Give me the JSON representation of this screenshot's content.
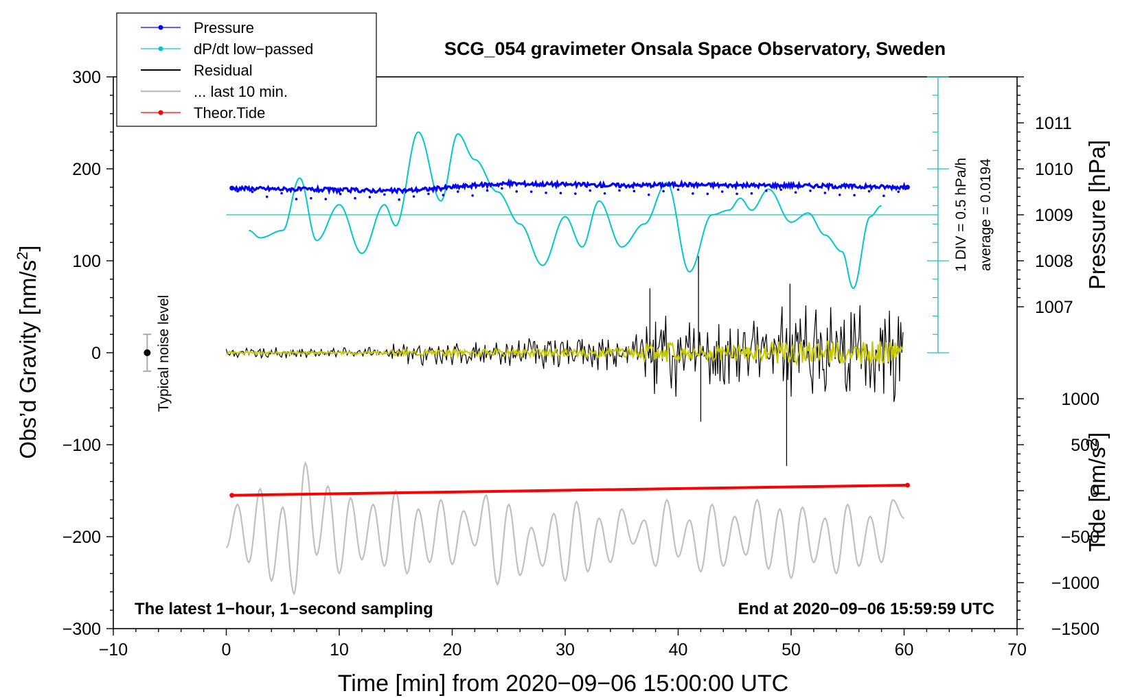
{
  "chart_data": {
    "type": "line",
    "title": "SCG_054 gravimeter Onsala Space Observatory, Sweden",
    "xlabel": "Time [min] from 2020−09−06 15:00:00 UTC",
    "ylabel_left_main": "Obs’d Gravity [nm/s",
    "ylabel_left_sup": "2",
    "ylabel_left_end": "]",
    "ylabel_right_pressure": "Pressure [hPa]",
    "ylabel_right_tide_main": "Tide [nm/s",
    "ylabel_right_tide_sup": "2",
    "ylabel_right_tide_end": "]",
    "xlim": [
      -10,
      70
    ],
    "ylim": [
      -300,
      300
    ],
    "x_ticks": [
      -10,
      0,
      10,
      20,
      30,
      40,
      50,
      60,
      70
    ],
    "x_tick_labels": [
      "−10",
      "0",
      "10",
      "20",
      "30",
      "40",
      "50",
      "60",
      "70"
    ],
    "y_ticks": [
      300,
      200,
      100,
      0,
      -100,
      -200,
      -300
    ],
    "y_tick_labels": [
      "300",
      "200",
      "100",
      "0",
      "−100",
      "−200",
      "−300"
    ],
    "pressure_axis": {
      "ticks": [
        1011,
        1010,
        1009,
        1008,
        1007
      ],
      "tick_labels": [
        "1011",
        "1010",
        "1009",
        "1008",
        "1007"
      ],
      "gravity_at": [
        250,
        200,
        150,
        100,
        50
      ]
    },
    "tide_axis": {
      "ticks": [
        1000,
        500,
        0,
        -500,
        -1000,
        -1500
      ],
      "tick_labels": [
        "1000",
        "500",
        "0",
        "−500",
        "−1000",
        "−1500"
      ],
      "gravity_at": [
        -50,
        -100,
        -150,
        -200,
        -250,
        -300
      ]
    },
    "dpdt_scale": {
      "label_div": "1 DIV = 0.5 hPa/h",
      "label_avg": "average = 0.0194",
      "x": 63,
      "gravity_top": 300,
      "gravity_bottom": 0,
      "minor_step": 20,
      "major_step": 100,
      "baseline": 150
    },
    "noise_level": {
      "label": "Typical noise level",
      "x": -7,
      "value": 0,
      "range": [
        -20,
        20
      ]
    },
    "series": [
      {
        "name": "Pressure",
        "color": "#0000ff",
        "style": "line-marker",
        "x": [
          0.5,
          5,
          10,
          15,
          18,
          20,
          22,
          25,
          30,
          35,
          40,
          45,
          50,
          55,
          60.3
        ],
        "values": [
          179,
          178,
          177,
          176,
          178,
          180,
          182,
          184,
          183,
          182,
          183,
          182,
          182,
          181,
          180
        ]
      },
      {
        "name": "dP/dt low−passed",
        "color": "#00c8c8",
        "style": "line-marker",
        "x": [
          2,
          3,
          5,
          6.5,
          8,
          10,
          12,
          14,
          15,
          17,
          19,
          20.5,
          22,
          24,
          26,
          28,
          30,
          31.5,
          33,
          35,
          37,
          39,
          41,
          43,
          44.5,
          45.5,
          46.5,
          48,
          50,
          51.5,
          53,
          54.5,
          55.5,
          57,
          58
        ],
        "values": [
          133,
          125,
          133,
          190,
          122,
          161,
          108,
          161,
          138,
          240,
          165,
          238,
          210,
          175,
          140,
          95,
          148,
          115,
          165,
          115,
          140,
          185,
          88,
          150,
          155,
          168,
          155,
          178,
          142,
          152,
          128,
          110,
          70,
          148,
          160
        ]
      },
      {
        "name": "Residual",
        "color": "#000000",
        "style": "line",
        "x": [
          0,
          14,
          15,
          20,
          25,
          30,
          34,
          37,
          38,
          40,
          42,
          44,
          47,
          50,
          52,
          55,
          58,
          60
        ],
        "values": [
          0,
          0,
          0,
          0,
          0,
          0,
          0,
          0,
          0,
          0,
          0,
          0,
          0,
          0,
          0,
          0,
          0,
          0
        ]
      },
      {
        "name": "... last 10 min.",
        "color": "#c0c0c0",
        "style": "line",
        "x": [
          0,
          1,
          2,
          3,
          4,
          5,
          6,
          7,
          8,
          9,
          10,
          11,
          12,
          13,
          14,
          15,
          16,
          17,
          18,
          19,
          20,
          21,
          22,
          23,
          24,
          25,
          26,
          27,
          28,
          29,
          30,
          31,
          32,
          33,
          34,
          35,
          36,
          37,
          38,
          39,
          40,
          41,
          42,
          43,
          44,
          45,
          46,
          47,
          48,
          49,
          50,
          51,
          52,
          53,
          54,
          55,
          56,
          57,
          58,
          59,
          60
        ],
        "values": [
          -212,
          -165,
          -228,
          -148,
          -248,
          -168,
          -262,
          -120,
          -220,
          -145,
          -240,
          -158,
          -225,
          -165,
          -232,
          -150,
          -240,
          -170,
          -228,
          -160,
          -230,
          -172,
          -210,
          -155,
          -252,
          -165,
          -242,
          -190,
          -232,
          -175,
          -248,
          -162,
          -238,
          -180,
          -228,
          -170,
          -208,
          -182,
          -232,
          -160,
          -222,
          -182,
          -238,
          -165,
          -232,
          -178,
          -220,
          -160,
          -235,
          -170,
          -245,
          -168,
          -228,
          -180,
          -240,
          -165,
          -232,
          -178,
          -228,
          -160,
          -180
        ]
      },
      {
        "name": "Theor.Tide",
        "color": "#ff0000",
        "style": "line-marker",
        "x": [
          0.5,
          60.3
        ],
        "values": [
          -155,
          -144
        ]
      }
    ],
    "annotations": {
      "bottom_left": "The latest 1−hour, 1−second sampling",
      "bottom_right": "End at 2020−09−06 15:59:59 UTC"
    },
    "legend_position": "top-left"
  }
}
